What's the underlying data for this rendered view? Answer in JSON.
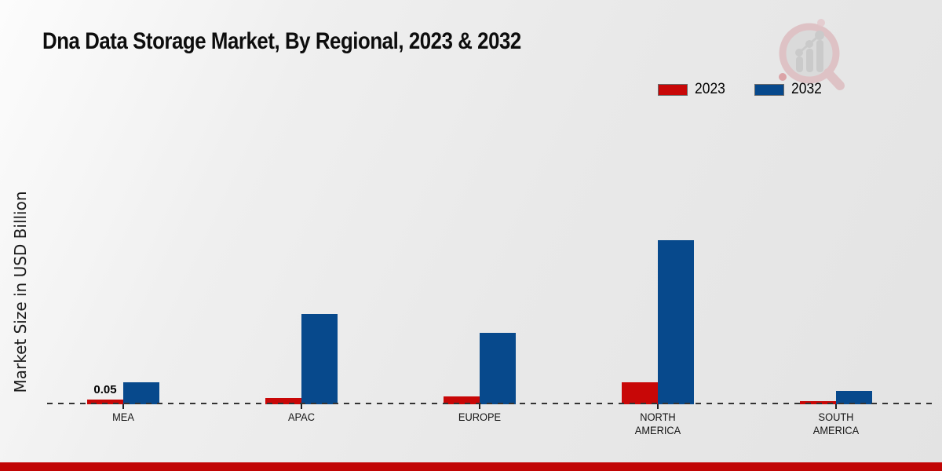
{
  "chart_data": {
    "type": "bar",
    "title": "Dna Data Storage Market, By Regional, 2023 & 2032",
    "xlabel": "",
    "ylabel": "Market Size in USD Billion",
    "categories": [
      "MEA",
      "APAC",
      "EUROPE",
      "NORTH AMERICA",
      "SOUTH AMERICA"
    ],
    "series": [
      {
        "name": "2023",
        "color": "#c80707",
        "values": [
          0.05,
          0.07,
          0.08,
          0.23,
          0.03
        ],
        "value_labels": [
          "0.05",
          "",
          "",
          "",
          ""
        ]
      },
      {
        "name": "2032",
        "color": "#07498c",
        "values": [
          0.23,
          0.96,
          0.76,
          1.74,
          0.14
        ],
        "value_labels": [
          "",
          "",
          "",
          "",
          ""
        ]
      }
    ],
    "ylim": [
      0,
      2
    ],
    "grid": false,
    "legend_position": "top-right",
    "baseline_style": "dashed"
  },
  "colors": {
    "background": "#e9e9e9",
    "accent_band": "#c10505",
    "baseline": "#333333"
  },
  "icons": {
    "watermark": "magnifier-bar-chart-icon"
  }
}
